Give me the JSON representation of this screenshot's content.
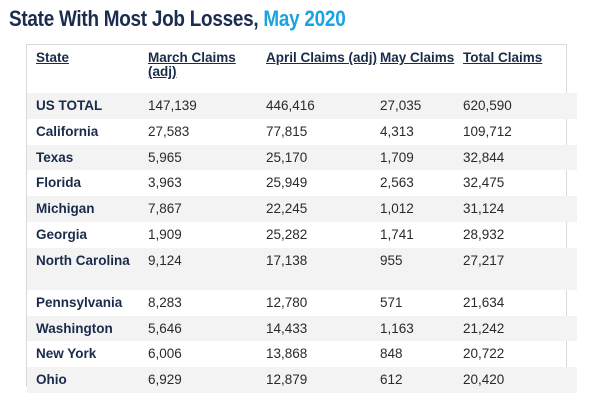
{
  "page_title": {
    "main": "State With Most Job Losses, ",
    "accent": "May 2020"
  },
  "chart_data": {
    "type": "table",
    "title": "State With Most Job Losses, May 2020",
    "columns": [
      "State",
      "March Claims (adj)",
      "April Claims (adj)",
      "May Claims",
      "Total Claims"
    ],
    "rows": [
      [
        "US TOTAL",
        "147,139",
        "446,416",
        "27,035",
        "620,590"
      ],
      [
        "California",
        "27,583",
        "77,815",
        "4,313",
        "109,712"
      ],
      [
        "Texas",
        "5,965",
        "25,170",
        "1,709",
        "32,844"
      ],
      [
        "Florida",
        "3,963",
        "25,949",
        "2,563",
        "32,475"
      ],
      [
        "Michigan",
        "7,867",
        "22,245",
        "1,012",
        "31,124"
      ],
      [
        "Georgia",
        "1,909",
        "25,282",
        "1,741",
        "28,932"
      ],
      [
        "North Carolina",
        "9,124",
        "17,138",
        "955",
        "27,217"
      ],
      [
        "Pennsylvania",
        "8,283",
        "12,780",
        "571",
        "21,634"
      ],
      [
        "Washington",
        "5,646",
        "14,433",
        "1,163",
        "21,242"
      ],
      [
        "New York",
        "6,006",
        "13,868",
        "848",
        "20,722"
      ],
      [
        "Ohio",
        "6,929",
        "12,879",
        "612",
        "20,420"
      ]
    ]
  }
}
